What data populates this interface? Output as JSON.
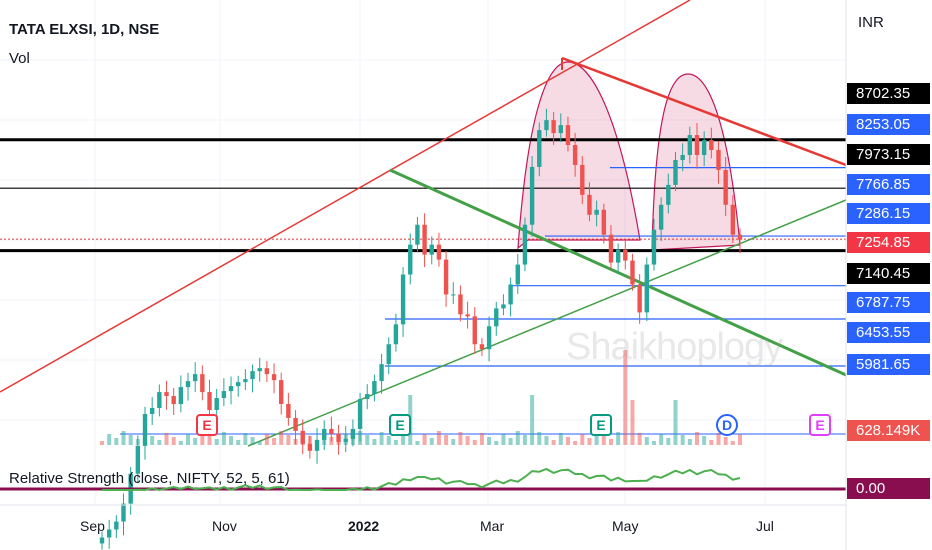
{
  "header": {
    "title": "TATA ELXSI, 1D, NSE",
    "volume_label": "Vol",
    "currency": "INR"
  },
  "watermark": "Shaikhoplogy",
  "price_tags": [
    {
      "text": "8702.35",
      "bg": "#000000"
    },
    {
      "text": "8253.05",
      "bg": "#2962ff"
    },
    {
      "text": "7973.15",
      "bg": "#000000"
    },
    {
      "text": "7766.85",
      "bg": "#2962ff"
    },
    {
      "text": "7286.15",
      "bg": "#2962ff"
    },
    {
      "text": "7254.85",
      "bg": "#f23645"
    },
    {
      "text": "7140.45",
      "bg": "#000000"
    },
    {
      "text": "6787.75",
      "bg": "#2962ff"
    },
    {
      "text": "6453.55",
      "bg": "#2962ff"
    },
    {
      "text": "5981.65",
      "bg": "#2962ff"
    },
    {
      "text": "628.149K",
      "bg": "#ef5350"
    },
    {
      "text": "0.00",
      "bg": "#880e4f"
    }
  ],
  "x_axis": {
    "labels": [
      {
        "text": "Sep",
        "bold": false
      },
      {
        "text": "Nov",
        "bold": false
      },
      {
        "text": "2022",
        "bold": true
      },
      {
        "text": "Mar",
        "bold": false
      },
      {
        "text": "May",
        "bold": false
      },
      {
        "text": "Jul",
        "bold": false
      }
    ]
  },
  "event_markers": [
    {
      "text": "E",
      "color": "#f23645",
      "shape": "flag"
    },
    {
      "text": "E",
      "color": "#089981",
      "shape": "flag"
    },
    {
      "text": "E",
      "color": "#089981",
      "shape": "flag"
    },
    {
      "text": "D",
      "color": "#2962ff",
      "shape": "circle"
    },
    {
      "text": "E",
      "color": "#e040fb",
      "shape": "box"
    }
  ],
  "indicator": {
    "label": "Relative Strength (close, NIFTY, 52, 5, 61)",
    "value": "0.00"
  },
  "colors": {
    "up": "#26a69a",
    "down": "#ef5350",
    "trendline_red": "#e53935",
    "trendline_green": "#43a047",
    "level_blue": "#2962ff",
    "rs_line": "#4caf50"
  },
  "chart_data": {
    "type": "candlestick",
    "symbol": "TATA ELXSI",
    "interval": "1D",
    "exchange": "NSE",
    "y_levels": [
      8702.35,
      8253.05,
      7973.15,
      7766.85,
      7286.15,
      7254.85,
      7140.45,
      6787.75,
      6453.55,
      5981.65
    ],
    "last_price": 7254.85,
    "volume_last": "628.149K",
    "x_ticks": [
      "Sep",
      "Nov",
      "2022",
      "Mar",
      "May",
      "Jul"
    ],
    "closes": [
      4260,
      4340,
      4420,
      4600,
      4900,
      5180,
      5500,
      5560,
      5720,
      5680,
      5600,
      5770,
      5830,
      5900,
      5720,
      5540,
      5660,
      5730,
      5780,
      5820,
      5850,
      5930,
      5960,
      5900,
      5840,
      5600,
      5460,
      5330,
      5200,
      5130,
      5240,
      5350,
      5300,
      5220,
      5250,
      5350,
      5650,
      5700,
      5830,
      6000,
      6200,
      6400,
      6900,
      7200,
      7400,
      7100,
      7200,
      7050,
      6700,
      6700,
      6500,
      6480,
      6200,
      6150,
      6380,
      6560,
      6600,
      6800,
      7000,
      7400,
      7980,
      8350,
      8450,
      8320,
      8400,
      8200,
      8000,
      7700,
      7500,
      7550,
      7300,
      7020,
      7150,
      7040,
      6800,
      6520,
      7000,
      7350,
      7600,
      7800,
      8050,
      8100,
      8300,
      8100,
      8250,
      8150,
      7950,
      7600,
      7300,
      7250
    ],
    "annotations": {
      "horizontal_levels_black": [
        8253.05,
        7766.85,
        7140.45
      ],
      "horizontal_levels_blue": [
        7973.15,
        7286.15,
        6787.75,
        6453.55,
        5981.65
      ],
      "patterns": [
        "rising channel (red)",
        "descending trendline (green)",
        "two rounded tops (shaded)"
      ]
    }
  }
}
